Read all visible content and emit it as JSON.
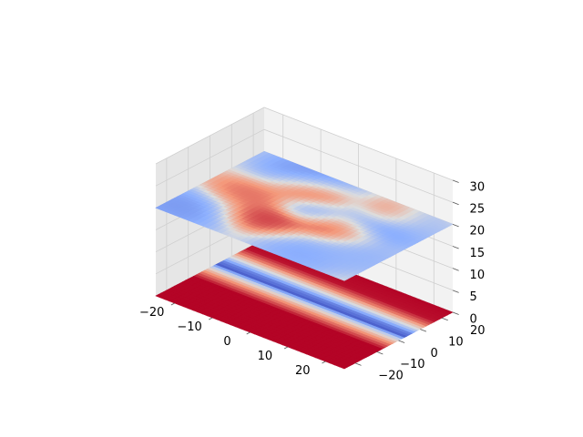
{
  "chart_data": {
    "type": "surface3d",
    "title": "",
    "xlabel": "",
    "ylabel": "",
    "zlabel": "",
    "colormap": "coolwarm",
    "grid": true,
    "pane_color": "#f2f2f2",
    "xlim": [
      -25,
      25
    ],
    "ylim": [
      -25,
      25
    ],
    "zlim": [
      0,
      30
    ],
    "x_ticks": [
      -20,
      -10,
      0,
      10,
      20
    ],
    "y_ticks": [
      -20,
      -10,
      0,
      10,
      20
    ],
    "z_ticks": [
      0,
      5,
      10,
      15,
      20,
      25,
      30
    ],
    "x_tick_labels": [
      "−20",
      "−10",
      "0",
      "10",
      "20"
    ],
    "y_tick_labels": [
      "−20",
      "−10",
      "0",
      "10",
      "20"
    ],
    "z_tick_labels": [
      "0",
      "5",
      "10",
      "15",
      "20",
      "25",
      "30"
    ],
    "surfaces": [
      {
        "z_level": 0,
        "pattern": "stripes along y",
        "color_profile_y": [
          {
            "y": -25,
            "value": 1.0
          },
          {
            "y": -8,
            "value": 1.0
          },
          {
            "y": -3,
            "value": 0.75
          },
          {
            "y": 0,
            "value": 0.5
          },
          {
            "y": 3,
            "value": 0.05
          },
          {
            "y": 6,
            "value": 0.15
          },
          {
            "y": 9,
            "value": 0.45
          },
          {
            "y": 13,
            "value": 0.8
          },
          {
            "y": 17,
            "value": 0.98
          },
          {
            "y": 25,
            "value": 1.0
          }
        ]
      },
      {
        "z_level": 20,
        "pattern": "mixed warm/cool blobs",
        "color_features": [
          {
            "x": -22,
            "y": -20,
            "value": 0.15,
            "spread": 7
          },
          {
            "x": 20,
            "y": -10,
            "value": 0.25,
            "spread": 6
          },
          {
            "x": 15,
            "y": 10,
            "value": 0.15,
            "spread": 7
          },
          {
            "x": -12,
            "y": 22,
            "value": 0.15,
            "spread": 7
          },
          {
            "x": 0,
            "y": 5,
            "value": 0.12,
            "spread": 4
          },
          {
            "x": 10,
            "y": -20,
            "value": 0.2,
            "spread": 6
          },
          {
            "x": 20,
            "y": 18,
            "value": 0.35,
            "spread": 5
          },
          {
            "x": -5,
            "y": -10,
            "value": 0.95,
            "spread": 5
          },
          {
            "x": -5,
            "y": 12,
            "value": 0.95,
            "spread": 5
          },
          {
            "x": 8,
            "y": 0,
            "value": 0.95,
            "spread": 5
          },
          {
            "x": 12,
            "y": 18,
            "value": 0.9,
            "spread": 4
          },
          {
            "x": -15,
            "y": 0,
            "value": 0.85,
            "spread": 5
          }
        ]
      }
    ]
  }
}
